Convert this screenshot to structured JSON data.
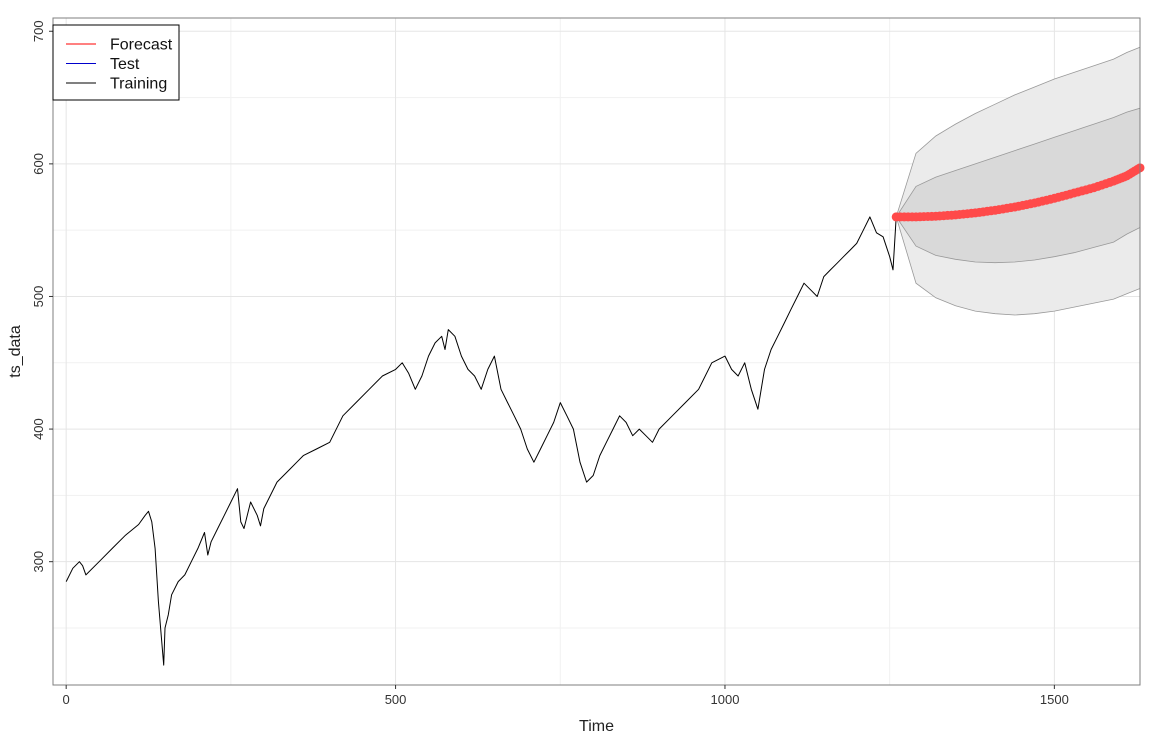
{
  "chart_data": {
    "type": "line",
    "title": "",
    "xlabel": "Time",
    "ylabel": "ts_data",
    "xlim": [
      -20,
      1630
    ],
    "ylim": [
      207,
      710
    ],
    "xticks": [
      0,
      500,
      1000,
      1500
    ],
    "yticks": [
      300,
      400,
      500,
      600,
      700
    ],
    "grid": true,
    "legend": {
      "position": "top-left",
      "entries": [
        {
          "label": "Forecast",
          "color": "#ff0000"
        },
        {
          "label": "Test",
          "color": "#0000cc"
        },
        {
          "label": "Training",
          "color": "#000000"
        }
      ]
    },
    "colors": {
      "training": "#000000",
      "forecast_points": "#ff4a4a",
      "band_outer": "#ebebeb",
      "band_inner": "#d9d9d9",
      "band_edge": "#999999",
      "grid": "#e5e5e5",
      "panel_border": "#7f7f7f"
    },
    "series": [
      {
        "name": "Training",
        "x": [
          0,
          10,
          20,
          25,
          30,
          50,
          70,
          90,
          110,
          120,
          125,
          130,
          135,
          140,
          145,
          148,
          150,
          155,
          160,
          170,
          180,
          190,
          200,
          210,
          215,
          220,
          230,
          240,
          250,
          260,
          265,
          270,
          280,
          290,
          295,
          300,
          320,
          340,
          350,
          360,
          380,
          400,
          420,
          440,
          460,
          480,
          500,
          510,
          520,
          530,
          540,
          550,
          560,
          570,
          575,
          580,
          590,
          600,
          610,
          620,
          630,
          640,
          650,
          660,
          670,
          680,
          690,
          700,
          710,
          720,
          730,
          740,
          750,
          760,
          770,
          780,
          790,
          800,
          810,
          820,
          830,
          840,
          850,
          860,
          870,
          880,
          890,
          900,
          920,
          940,
          960,
          980,
          1000,
          1010,
          1020,
          1030,
          1040,
          1050,
          1060,
          1070,
          1080,
          1090,
          1100,
          1110,
          1120,
          1130,
          1140,
          1150,
          1160,
          1170,
          1180,
          1190,
          1200,
          1210,
          1220,
          1230,
          1240,
          1250,
          1255,
          1260
        ],
        "values": [
          285,
          295,
          300,
          297,
          290,
          300,
          310,
          320,
          328,
          335,
          338,
          330,
          310,
          270,
          240,
          222,
          250,
          260,
          275,
          285,
          290,
          300,
          310,
          322,
          305,
          315,
          325,
          335,
          345,
          355,
          330,
          325,
          345,
          335,
          327,
          340,
          360,
          370,
          375,
          380,
          385,
          390,
          410,
          420,
          430,
          440,
          445,
          450,
          442,
          430,
          440,
          455,
          465,
          470,
          460,
          475,
          470,
          455,
          445,
          440,
          430,
          445,
          455,
          430,
          420,
          410,
          400,
          385,
          375,
          385,
          395,
          405,
          420,
          410,
          400,
          375,
          360,
          365,
          380,
          390,
          400,
          410,
          405,
          395,
          400,
          395,
          390,
          400,
          410,
          420,
          430,
          450,
          455,
          445,
          440,
          450,
          430,
          415,
          445,
          460,
          470,
          480,
          490,
          500,
          510,
          505,
          500,
          515,
          520,
          525,
          530,
          535,
          540,
          550,
          560,
          548,
          545,
          530,
          520,
          560
        ]
      },
      {
        "name": "Forecast",
        "x": [
          1260,
          1290,
          1320,
          1350,
          1380,
          1410,
          1440,
          1470,
          1500,
          1530,
          1560,
          1590,
          1610,
          1630
        ],
        "values": [
          560,
          560,
          560.5,
          561.5,
          563,
          565,
          567.5,
          570.5,
          574,
          578,
          582,
          587,
          591,
          597
        ],
        "lower_80": [
          560,
          538,
          531,
          528,
          526,
          525.5,
          526,
          527.5,
          530,
          533,
          537,
          541,
          547,
          552
        ],
        "upper_80": [
          560,
          583,
          590,
          595,
          600,
          605,
          610,
          615,
          620,
          625,
          630,
          635,
          639,
          642
        ],
        "lower_95": [
          560,
          510,
          499,
          493,
          489,
          487,
          486,
          487,
          489,
          492,
          495,
          498,
          502,
          506
        ],
        "upper_95": [
          560,
          608,
          621,
          630,
          638,
          645,
          652,
          658,
          664,
          669,
          674,
          679,
          684,
          688
        ]
      }
    ]
  }
}
